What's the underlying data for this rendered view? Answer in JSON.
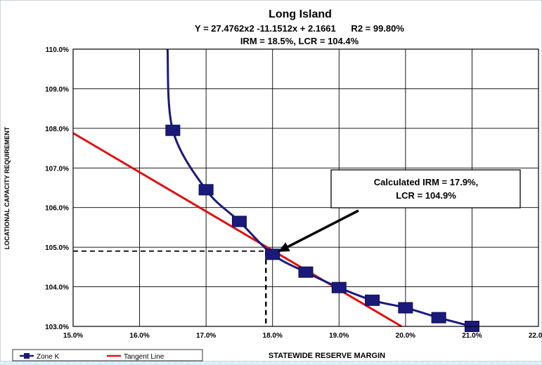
{
  "chart_data": {
    "type": "line",
    "title": "Long Island",
    "subtitle_1": "Y = 27.4762x2 -11.1512x + 2.1661      R2 = 99.80%",
    "subtitle_2": "IRM = 18.5%, LCR = 104.4%",
    "xlabel": "STATEWIDE RESERVE MARGIN",
    "ylabel": "LOCATIONAL CAPACITY REQUIREMENT",
    "xlim": [
      0.15,
      0.22
    ],
    "ylim": [
      1.03,
      1.1
    ],
    "x_ticks": [
      0.15,
      0.16,
      0.17,
      0.18,
      0.19,
      0.2,
      0.21,
      0.22
    ],
    "x_tick_labels": [
      "15.0%",
      "16.0%",
      "17.0%",
      "18.0%",
      "19.0%",
      "20.0%",
      "21.0%",
      "22.0%"
    ],
    "y_ticks": [
      1.03,
      1.04,
      1.05,
      1.06,
      1.07,
      1.08,
      1.09,
      1.1
    ],
    "y_tick_labels": [
      "103.0%",
      "104.0%",
      "105.0%",
      "106.0%",
      "107.0%",
      "108.0%",
      "109.0%",
      "110.0%"
    ],
    "grid": true,
    "legend_position": "bottom-left",
    "series": [
      {
        "name": "Zone K",
        "color": "#1a1a7a",
        "marker": "square",
        "x": [
          0.165,
          0.17,
          0.175,
          0.18,
          0.185,
          0.19,
          0.195,
          0.2,
          0.205,
          0.21
        ],
        "y": [
          1.0795,
          1.0645,
          1.0565,
          1.0482,
          1.0437,
          1.0398,
          1.0366,
          1.0347,
          1.0322,
          1.03
        ],
        "curve_extension_top": [
          0.1642,
          1.1
        ]
      },
      {
        "name": "Tangent Line",
        "color": "#e01010",
        "x": [
          0.15,
          0.1994
        ],
        "y": [
          1.0788,
          1.03
        ]
      }
    ],
    "reference_point": {
      "x": 0.179,
      "y": 1.049
    },
    "annotation": {
      "line1": "Calculated IRM = 17.9%,",
      "line2": "LCR = 104.9%",
      "arrow_target": {
        "x": 0.1808,
        "y": 1.0488
      }
    }
  }
}
